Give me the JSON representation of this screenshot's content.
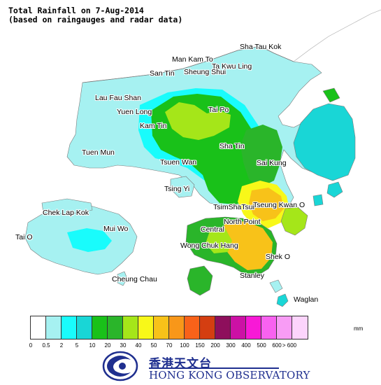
{
  "title": {
    "line1": "Total Rainfall on 7-Aug-2014",
    "line2": "(based on raingauges and radar data)"
  },
  "places": [
    {
      "id": "sha-tau-kok",
      "name": "Sha Tau Kok"
    },
    {
      "id": "man-kam-to",
      "name": "Man Kam To"
    },
    {
      "id": "ta-kwu-ling",
      "name": "Ta Kwu Ling"
    },
    {
      "id": "san-tin",
      "name": "San Tin"
    },
    {
      "id": "sheung-shui",
      "name": "Sheung Shui"
    },
    {
      "id": "lau-fau-shan",
      "name": "Lau Fau Shan"
    },
    {
      "id": "yuen-long",
      "name": "Yuen Long"
    },
    {
      "id": "tai-po",
      "name": "Tai Po"
    },
    {
      "id": "kam-tin",
      "name": "Kam Tin"
    },
    {
      "id": "tuen-mun",
      "name": "Tuen Mun"
    },
    {
      "id": "sha-tin",
      "name": "Sha Tin"
    },
    {
      "id": "tsuen-wan",
      "name": "Tsuen Wan"
    },
    {
      "id": "sai-kung",
      "name": "Sai Kung"
    },
    {
      "id": "tsing-yi",
      "name": "Tsing Yi"
    },
    {
      "id": "chek-lap-kok",
      "name": "Chek Lap Kok"
    },
    {
      "id": "tsim-sha-tsui",
      "name": "TsimShaTsui"
    },
    {
      "id": "tseung-kwan-o",
      "name": "Tseung Kwan O"
    },
    {
      "id": "north-point",
      "name": "North Point"
    },
    {
      "id": "central",
      "name": "Central"
    },
    {
      "id": "mui-wo",
      "name": "Mui Wo"
    },
    {
      "id": "tai-o",
      "name": "Tai O"
    },
    {
      "id": "wong-chuk-hang",
      "name": "Wong Chuk Hang"
    },
    {
      "id": "shek-o",
      "name": "Shek O"
    },
    {
      "id": "stanley",
      "name": "Stanley"
    },
    {
      "id": "cheung-chau",
      "name": "Cheung Chau"
    },
    {
      "id": "waglan",
      "name": "Waglan"
    }
  ],
  "legend": {
    "unit": "mm",
    "ticks": [
      "0",
      "0.5",
      "2",
      "5",
      "10",
      "20",
      "30",
      "40",
      "50",
      "70",
      "100",
      "150",
      "200",
      "300",
      "400",
      "500",
      "600",
      "> 600"
    ],
    "colors": [
      "#ffffff",
      "#a6f1f1",
      "#19fcfc",
      "#19d6d6",
      "#19c119",
      "#2ab52a",
      "#a5e619",
      "#f8f819",
      "#f8c219",
      "#f89719",
      "#f86219",
      "#d43e11",
      "#8e0f5c",
      "#cc11a5",
      "#f819d6",
      "#f862f0",
      "#f89cf5",
      "#fcd4fc"
    ]
  },
  "organization": {
    "name_cn": "香港天文台",
    "name_en": "HONG KONG OBSERVATORY"
  }
}
